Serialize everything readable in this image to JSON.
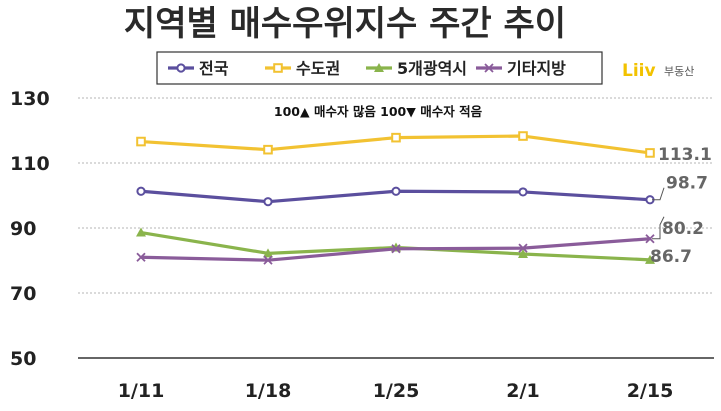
{
  "logo": {
    "main": "Liiv",
    "sub": "부동산",
    "color": "#f2c200"
  },
  "chart_data": {
    "type": "line",
    "title": "지역별 매수우위지수 주간 추이",
    "note": "100▲ 매수자 많음 100▼ 매수자 적음",
    "categories": [
      "1/11",
      "1/18",
      "1/25",
      "2/1",
      "2/15"
    ],
    "yticks": [
      "50",
      "70",
      "90",
      "110",
      "130"
    ],
    "ylim": [
      50,
      130
    ],
    "grid": true,
    "legend_position": "top",
    "series": [
      {
        "name": "전국",
        "color": "#5b4f9e",
        "marker": "circle",
        "values": [
          101.3,
          98.1,
          101.3,
          101.1,
          98.7
        ]
      },
      {
        "name": "수도권",
        "color": "#f2c232",
        "marker": "square",
        "values": [
          116.6,
          114.1,
          117.8,
          118.3,
          113.1
        ]
      },
      {
        "name": "5개광역시",
        "color": "#8ab44c",
        "marker": "triangle",
        "values": [
          88.6,
          82.2,
          84.0,
          82.0,
          80.2
        ]
      },
      {
        "name": "기타지방",
        "color": "#8a5c9a",
        "marker": "x",
        "values": [
          81.0,
          80.1,
          83.6,
          83.8,
          86.7
        ]
      }
    ],
    "data_labels": [
      "113.1",
      "98.7",
      "80.2",
      "86.7"
    ]
  }
}
